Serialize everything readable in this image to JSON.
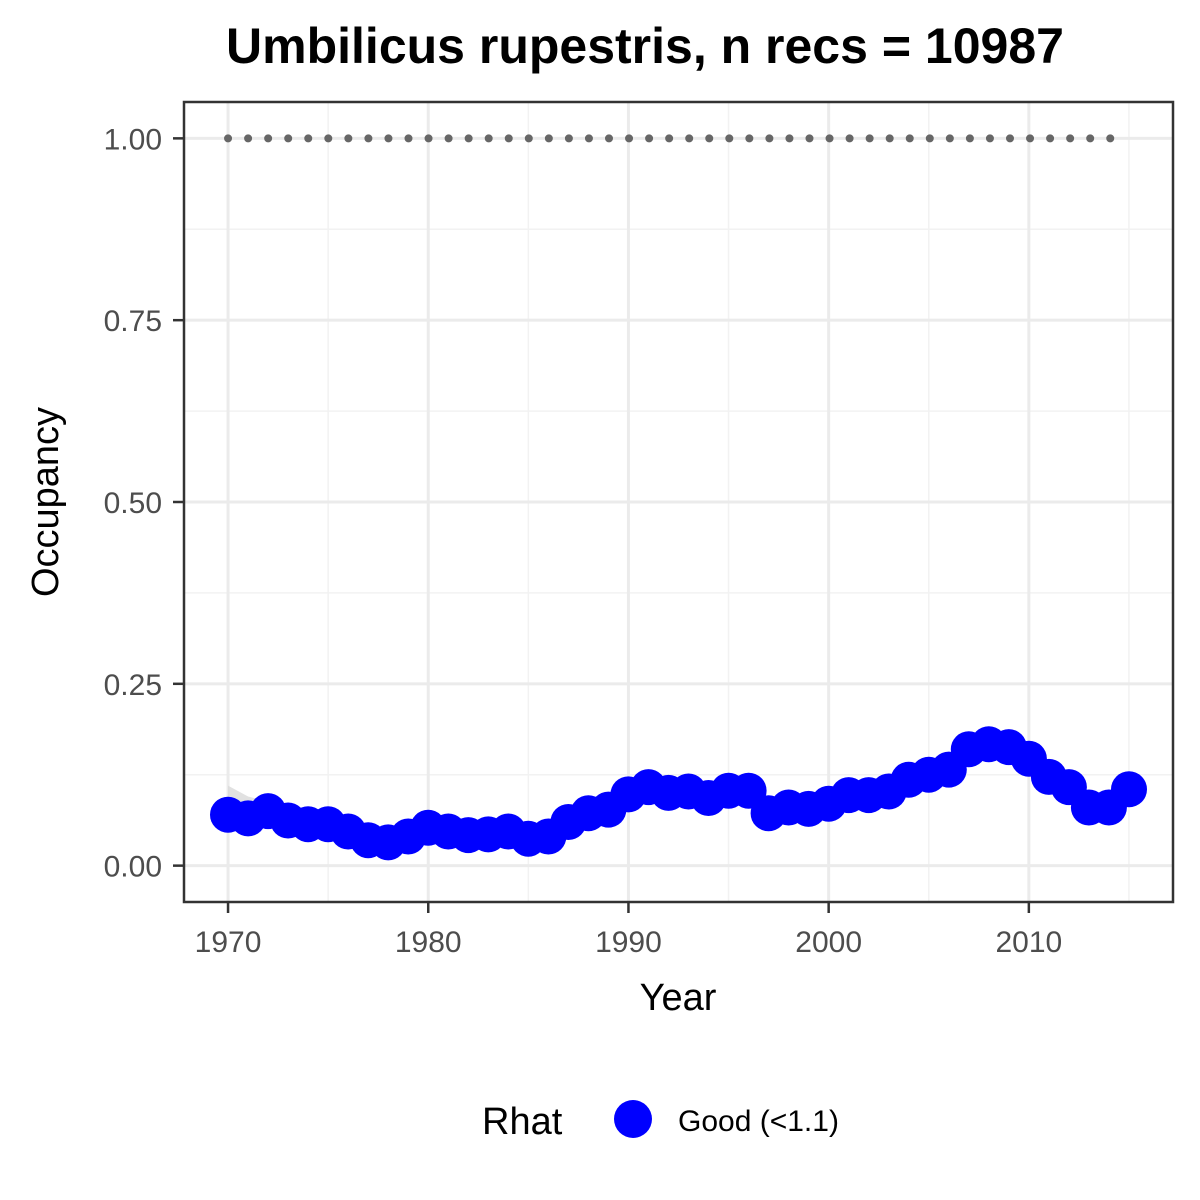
{
  "chart_data": {
    "type": "scatter",
    "title": "Umbilicus rupestris, n recs = 10987",
    "xlabel": "Year",
    "ylabel": "Occupancy",
    "xlim": [
      1967.8,
      2017.2
    ],
    "ylim": [
      -0.05,
      1.05
    ],
    "x_ticks": [
      1970,
      1980,
      1990,
      2000,
      2010
    ],
    "x_tick_labels": [
      "1970",
      "1980",
      "1990",
      "2000",
      "2010"
    ],
    "y_ticks": [
      0,
      0.25,
      0.5,
      0.75,
      1.0
    ],
    "y_tick_labels": [
      "0.00",
      "0.25",
      "0.50",
      "0.75",
      "1.00"
    ],
    "grid": true,
    "legend": {
      "title": "Rhat",
      "position": "bottom",
      "entries": [
        {
          "label": "Good (<1.1)",
          "color": "#0000ff"
        }
      ]
    },
    "series": [
      {
        "name": "Good (<1.1)",
        "color": "#0000ff",
        "x": [
          1970,
          1971,
          1972,
          1973,
          1974,
          1975,
          1976,
          1977,
          1978,
          1979,
          1980,
          1981,
          1982,
          1983,
          1984,
          1985,
          1986,
          1987,
          1988,
          1989,
          1990,
          1991,
          1992,
          1993,
          1994,
          1995,
          1996,
          1997,
          1998,
          1999,
          2000,
          2001,
          2002,
          2003,
          2004,
          2005,
          2006,
          2007,
          2008,
          2009,
          2010,
          2011,
          2012,
          2013,
          2014,
          2015
        ],
        "y": [
          0.07,
          0.065,
          0.075,
          0.062,
          0.057,
          0.057,
          0.047,
          0.035,
          0.032,
          0.04,
          0.052,
          0.047,
          0.042,
          0.043,
          0.047,
          0.037,
          0.04,
          0.06,
          0.072,
          0.077,
          0.098,
          0.108,
          0.1,
          0.102,
          0.093,
          0.103,
          0.103,
          0.072,
          0.08,
          0.078,
          0.085,
          0.097,
          0.097,
          0.102,
          0.118,
          0.125,
          0.132,
          0.16,
          0.167,
          0.163,
          0.147,
          0.122,
          0.108,
          0.08,
          0.08,
          0.105
        ]
      }
    ],
    "ribbon": {
      "color": "#d9d9d9",
      "x": [
        1970,
        1971,
        1972,
        1973,
        1974,
        1975,
        1976,
        1977,
        1978,
        1979,
        1980
      ],
      "upper": [
        0.11,
        0.095,
        0.088,
        0.072,
        0.065,
        0.064,
        0.054,
        0.042,
        0.038,
        0.046,
        0.058
      ],
      "lower": [
        0.05,
        0.05,
        0.06,
        0.052,
        0.049,
        0.05,
        0.04,
        0.029,
        0.027,
        0.034,
        0.046
      ]
    },
    "reference_line": {
      "y": 1.0,
      "style": "dotted",
      "color": "#666666",
      "x_range": [
        1970,
        2015
      ]
    }
  }
}
